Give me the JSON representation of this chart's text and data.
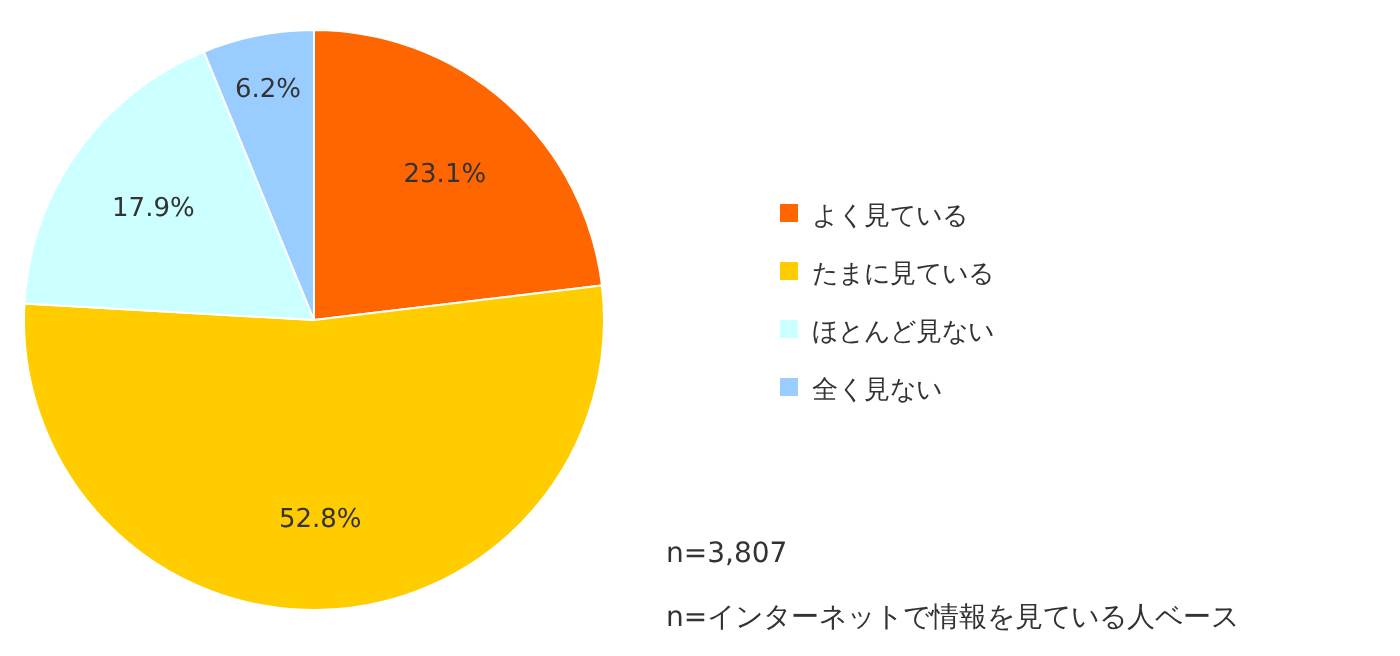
{
  "chart_data": {
    "type": "pie",
    "categories": [
      "よく見ている",
      "たまに見ている",
      "ほとんど見ない",
      "全く見ない"
    ],
    "values": [
      23.1,
      52.8,
      17.9,
      6.2
    ],
    "colors": [
      "#ff6600",
      "#ffcc00",
      "#ccffff",
      "#99ccff"
    ],
    "value_labels": [
      "23.1%",
      "52.8%",
      "17.9%",
      "6.2%"
    ],
    "legend": "right",
    "annotations": [
      "n=3,807",
      "n=インターネットで情報を見ている人ベース"
    ]
  }
}
